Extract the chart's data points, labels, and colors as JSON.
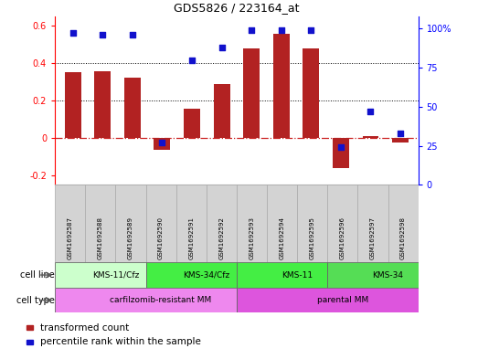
{
  "title": "GDS5826 / 223164_at",
  "samples": [
    "GSM1692587",
    "GSM1692588",
    "GSM1692589",
    "GSM1692590",
    "GSM1692591",
    "GSM1692592",
    "GSM1692593",
    "GSM1692594",
    "GSM1692595",
    "GSM1692596",
    "GSM1692597",
    "GSM1692598"
  ],
  "transformed_count": [
    0.35,
    0.355,
    0.32,
    -0.065,
    0.155,
    0.29,
    0.48,
    0.555,
    0.48,
    -0.16,
    0.01,
    -0.025
  ],
  "percentile_rank": [
    97,
    96,
    96,
    27,
    80,
    88,
    99,
    99,
    99,
    24,
    47,
    33
  ],
  "bar_color": "#b22222",
  "dot_color": "#1111cc",
  "zero_line_color": "#cc2222",
  "ylim_left": [
    -0.25,
    0.65
  ],
  "ylim_right": [
    0,
    108.0
  ],
  "yticks_left": [
    -0.2,
    0.0,
    0.2,
    0.4,
    0.6
  ],
  "ytick_labels_left": [
    "-0.2",
    "0",
    "0.2",
    "0.4",
    "0.6"
  ],
  "yticks_right": [
    0,
    25,
    50,
    75,
    100
  ],
  "ytick_labels_right": [
    "0",
    "25",
    "50",
    "75",
    "100%"
  ],
  "cell_line_groups": [
    {
      "label": "KMS-11/Cfz",
      "start": 0,
      "end": 3,
      "color": "#ccffcc"
    },
    {
      "label": "KMS-34/Cfz",
      "start": 3,
      "end": 6,
      "color": "#44ee44"
    },
    {
      "label": "KMS-11",
      "start": 6,
      "end": 9,
      "color": "#44ee44"
    },
    {
      "label": "KMS-34",
      "start": 9,
      "end": 12,
      "color": "#55dd55"
    }
  ],
  "cell_type_groups": [
    {
      "label": "carfilzomib-resistant MM",
      "start": 0,
      "end": 6,
      "color": "#ee88ee"
    },
    {
      "label": "parental MM",
      "start": 6,
      "end": 12,
      "color": "#dd55dd"
    }
  ],
  "cell_line_label": "cell line",
  "cell_type_label": "cell type",
  "legend_bar_color": "#b22222",
  "legend_bar_label": "transformed count",
  "legend_dot_color": "#1111cc",
  "legend_dot_label": "percentile rank within the sample",
  "bg_color": "#ffffff",
  "sample_box_color": "#d3d3d3",
  "sample_box_edge": "#aaaaaa"
}
